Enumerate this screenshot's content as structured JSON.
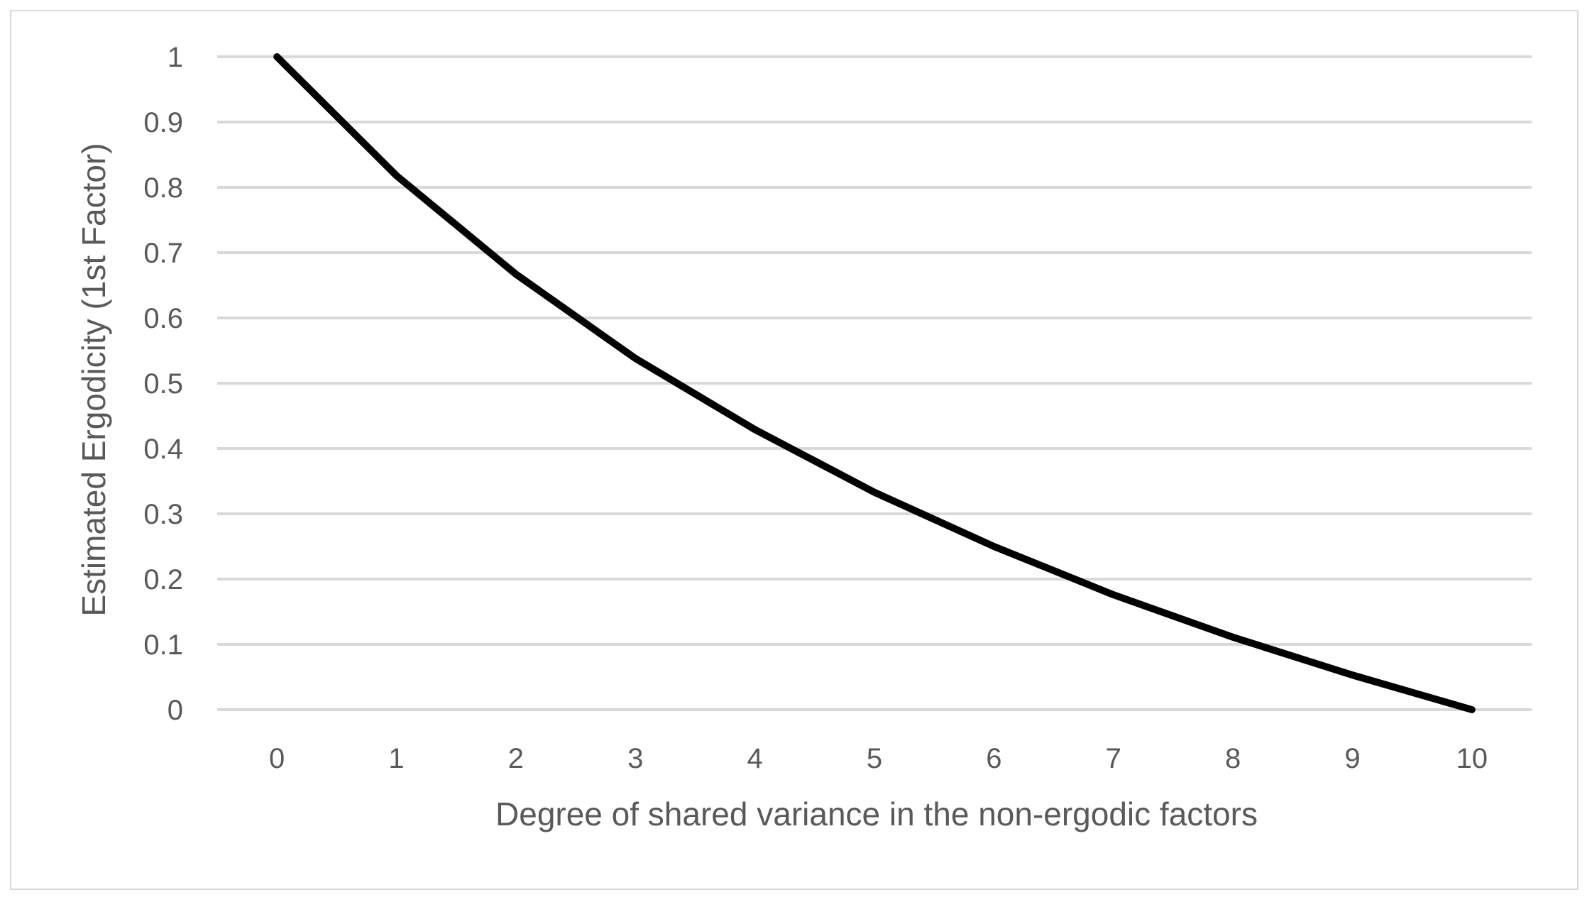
{
  "chart_data": {
    "type": "line",
    "title": "",
    "xlabel": "Degree of shared variance in the non-ergodic factors",
    "ylabel": "Estimated Ergodicity (1st Factor)",
    "x": [
      0,
      1,
      2,
      3,
      4,
      5,
      6,
      7,
      8,
      9,
      10
    ],
    "x_tick_labels": [
      "0",
      "1",
      "2",
      "3",
      "4",
      "5",
      "6",
      "7",
      "8",
      "9",
      "10"
    ],
    "y_tick_labels": [
      "0",
      "0.1",
      "0.2",
      "0.3",
      "0.4",
      "0.5",
      "0.6",
      "0.7",
      "0.8",
      "0.9",
      "1"
    ],
    "ylim": [
      0,
      1
    ],
    "grid": true,
    "legend": "none",
    "series": [
      {
        "values": [
          1.0,
          0.818,
          0.667,
          0.538,
          0.429,
          0.333,
          0.25,
          0.176,
          0.111,
          0.053,
          0.0
        ],
        "color": "#000000"
      }
    ],
    "colors": {
      "grid": "#d9d9d9",
      "text": "#595959",
      "line": "#000000"
    }
  }
}
